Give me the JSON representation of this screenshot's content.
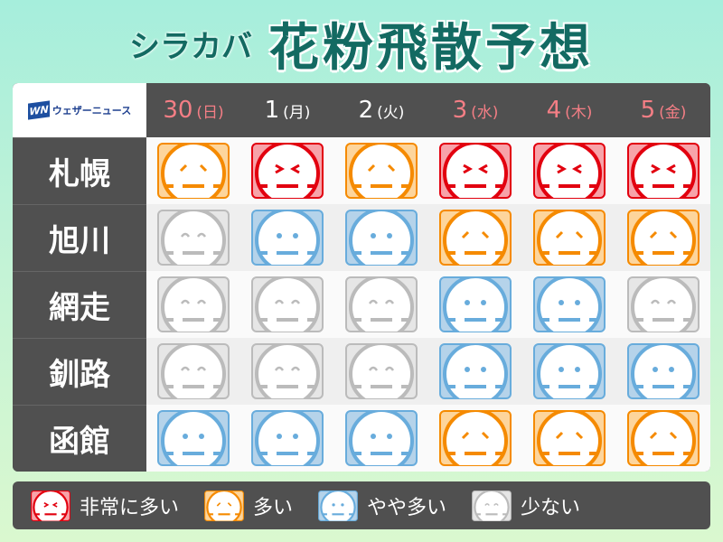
{
  "title": {
    "sub": "シラカバ",
    "main": "花粉飛散予想"
  },
  "logo": {
    "mark": "WN",
    "text": "ウェザーニュース"
  },
  "levels": {
    "very": {
      "label": "非常に多い",
      "stroke": "#e2000f",
      "fill": "#f7a3a9"
    },
    "high": {
      "label": "多い",
      "stroke": "#f58a00",
      "fill": "#fdd59c"
    },
    "medium": {
      "label": "やや多い",
      "stroke": "#68acdc",
      "fill": "#b5d3ea"
    },
    "low": {
      "label": "少ない",
      "stroke": "#bbbbbb",
      "fill": "#e6e6e6"
    }
  },
  "dates": [
    {
      "day": "30",
      "wd": "(日)",
      "holiday": true
    },
    {
      "day": "1",
      "wd": "(月)",
      "holiday": false
    },
    {
      "day": "2",
      "wd": "(火)",
      "holiday": false
    },
    {
      "day": "3",
      "wd": "(水)",
      "holiday": true
    },
    {
      "day": "4",
      "wd": "(木)",
      "holiday": true
    },
    {
      "day": "5",
      "wd": "(金)",
      "holiday": true
    }
  ],
  "rows": [
    {
      "city": "札幌",
      "values": [
        "high",
        "very",
        "high",
        "very",
        "very",
        "very"
      ]
    },
    {
      "city": "旭川",
      "values": [
        "low",
        "medium",
        "medium",
        "high",
        "high",
        "high"
      ]
    },
    {
      "city": "網走",
      "values": [
        "low",
        "low",
        "low",
        "medium",
        "medium",
        "low"
      ]
    },
    {
      "city": "釧路",
      "values": [
        "low",
        "low",
        "low",
        "medium",
        "medium",
        "medium"
      ]
    },
    {
      "city": "函館",
      "values": [
        "medium",
        "medium",
        "medium",
        "high",
        "high",
        "high"
      ]
    }
  ],
  "legend": [
    "very",
    "high",
    "medium",
    "low"
  ]
}
